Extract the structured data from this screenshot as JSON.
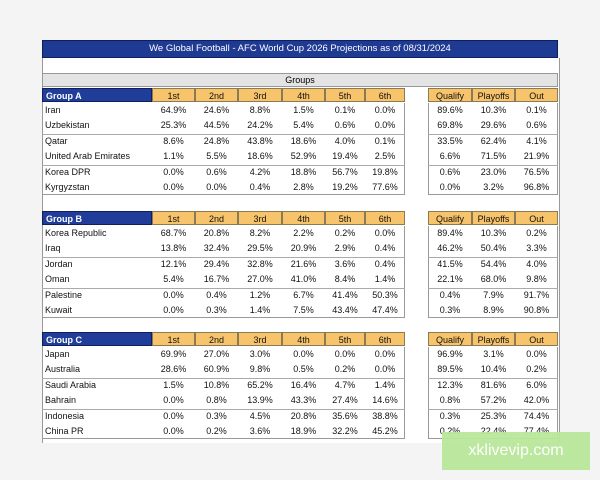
{
  "title": "We Global Football - AFC World Cup 2026 Projections as of 08/31/2024",
  "groups_label": "Groups",
  "groups": [
    {
      "name": "Group A",
      "columns": [
        "1st",
        "2nd",
        "3rd",
        "4th",
        "5th",
        "6th",
        "Qualify",
        "Playoffs",
        "Out"
      ],
      "rows": [
        {
          "team": "Iran",
          "values": [
            "64.9%",
            "24.6%",
            "8.8%",
            "1.5%",
            "0.1%",
            "0.0%",
            "89.6%",
            "10.3%",
            "0.1%"
          ]
        },
        {
          "team": "Uzbekistan",
          "values": [
            "25.3%",
            "44.5%",
            "24.2%",
            "5.4%",
            "0.6%",
            "0.0%",
            "69.8%",
            "29.6%",
            "0.6%"
          ]
        },
        {
          "team": "Qatar",
          "values": [
            "8.6%",
            "24.8%",
            "43.8%",
            "18.6%",
            "4.0%",
            "0.1%",
            "33.5%",
            "62.4%",
            "4.1%"
          ]
        },
        {
          "team": "United Arab Emirates",
          "values": [
            "1.1%",
            "5.5%",
            "18.6%",
            "52.9%",
            "19.4%",
            "2.5%",
            "6.6%",
            "71.5%",
            "21.9%"
          ]
        },
        {
          "team": "Korea DPR",
          "values": [
            "0.0%",
            "0.6%",
            "4.2%",
            "18.8%",
            "56.7%",
            "19.8%",
            "0.6%",
            "23.0%",
            "76.5%"
          ]
        },
        {
          "team": "Kyrgyzstan",
          "values": [
            "0.0%",
            "0.0%",
            "0.4%",
            "2.8%",
            "19.2%",
            "77.6%",
            "0.0%",
            "3.2%",
            "96.8%"
          ]
        }
      ]
    },
    {
      "name": "Group B",
      "columns": [
        "1st",
        "2nd",
        "3rd",
        "4th",
        "5th",
        "6th",
        "Qualify",
        "Playoffs",
        "Out"
      ],
      "rows": [
        {
          "team": "Korea Republic",
          "values": [
            "68.7%",
            "20.8%",
            "8.2%",
            "2.2%",
            "0.2%",
            "0.0%",
            "89.4%",
            "10.3%",
            "0.2%"
          ]
        },
        {
          "team": "Iraq",
          "values": [
            "13.8%",
            "32.4%",
            "29.5%",
            "20.9%",
            "2.9%",
            "0.4%",
            "46.2%",
            "50.4%",
            "3.3%"
          ]
        },
        {
          "team": "Jordan",
          "values": [
            "12.1%",
            "29.4%",
            "32.8%",
            "21.6%",
            "3.6%",
            "0.4%",
            "41.5%",
            "54.4%",
            "4.0%"
          ]
        },
        {
          "team": "Oman",
          "values": [
            "5.4%",
            "16.7%",
            "27.0%",
            "41.0%",
            "8.4%",
            "1.4%",
            "22.1%",
            "68.0%",
            "9.8%"
          ]
        },
        {
          "team": "Palestine",
          "values": [
            "0.0%",
            "0.4%",
            "1.2%",
            "6.7%",
            "41.4%",
            "50.3%",
            "0.4%",
            "7.9%",
            "91.7%"
          ]
        },
        {
          "team": "Kuwait",
          "values": [
            "0.0%",
            "0.3%",
            "1.4%",
            "7.5%",
            "43.4%",
            "47.4%",
            "0.3%",
            "8.9%",
            "90.8%"
          ]
        }
      ]
    },
    {
      "name": "Group C",
      "columns": [
        "1st",
        "2nd",
        "3rd",
        "4th",
        "5th",
        "6th",
        "Qualify",
        "Playoffs",
        "Out"
      ],
      "rows": [
        {
          "team": "Japan",
          "values": [
            "69.9%",
            "27.0%",
            "3.0%",
            "0.0%",
            "0.0%",
            "0.0%",
            "96.9%",
            "3.1%",
            "0.0%"
          ]
        },
        {
          "team": "Australia",
          "values": [
            "28.6%",
            "60.9%",
            "9.8%",
            "0.5%",
            "0.2%",
            "0.0%",
            "89.5%",
            "10.4%",
            "0.2%"
          ]
        },
        {
          "team": "Saudi Arabia",
          "values": [
            "1.5%",
            "10.8%",
            "65.2%",
            "16.4%",
            "4.7%",
            "1.4%",
            "12.3%",
            "81.6%",
            "6.0%"
          ]
        },
        {
          "team": "Bahrain",
          "values": [
            "0.0%",
            "0.8%",
            "13.9%",
            "43.3%",
            "27.4%",
            "14.6%",
            "0.8%",
            "57.2%",
            "42.0%"
          ]
        },
        {
          "team": "Indonesia",
          "values": [
            "0.0%",
            "0.3%",
            "4.5%",
            "20.8%",
            "35.6%",
            "38.8%",
            "0.3%",
            "25.3%",
            "74.4%"
          ]
        },
        {
          "team": "China PR",
          "values": [
            "0.0%",
            "0.2%",
            "3.6%",
            "18.9%",
            "32.2%",
            "45.2%",
            "0.2%",
            "22.4%",
            "77.4%"
          ]
        }
      ]
    }
  ],
  "watermark": "xklivevip.com"
}
